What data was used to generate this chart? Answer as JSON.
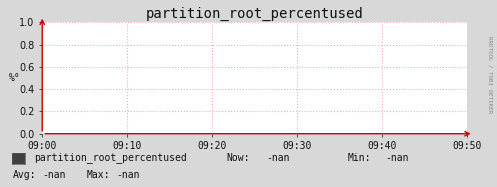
{
  "title": "partition_root_percentused",
  "ylabel": "%°",
  "ylim": [
    0.0,
    1.0
  ],
  "yticks": [
    0.0,
    0.2,
    0.4,
    0.6,
    0.8,
    1.0
  ],
  "xtick_labels": [
    "09:00",
    "09:10",
    "09:20",
    "09:30",
    "09:40",
    "09:50"
  ],
  "bg_color": "#d8d8d8",
  "plot_bg_color": "#ffffff",
  "grid_color": "#ffaaaa",
  "axis_color": "#cc0000",
  "title_color": "#111111",
  "label_color": "#111111",
  "legend_text": "partition_root_percentused",
  "legend_box_color": "#404040",
  "right_label": "RRDTOOL / TOBI OETIKER",
  "title_fontsize": 10,
  "axis_fontsize": 7,
  "legend_fontsize": 7,
  "arrow_color": "#cc0000"
}
